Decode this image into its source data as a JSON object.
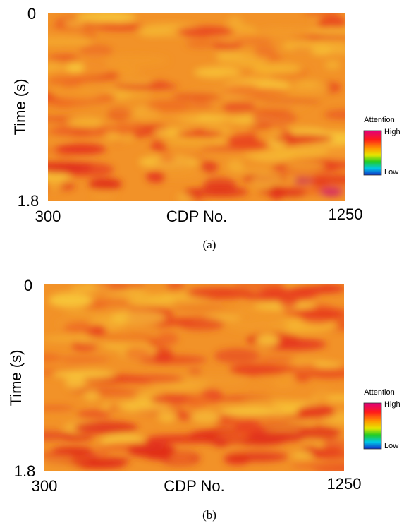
{
  "panels": [
    {
      "label": "(a)",
      "y_label": "Time (s)",
      "x_label": "CDP No.",
      "y_ticks": [
        "0",
        "1.8"
      ],
      "x_ticks": [
        "300",
        "1250"
      ],
      "colorbar": {
        "title": "Attention",
        "high": "High",
        "low": "Low"
      }
    },
    {
      "label": "(b)",
      "y_label": "Time (s)",
      "x_label": "CDP No.",
      "y_ticks": [
        "0",
        "1.8"
      ],
      "x_ticks": [
        "300",
        "1250"
      ],
      "colorbar": {
        "title": "Attention",
        "high": "High",
        "low": "Low"
      }
    }
  ]
}
